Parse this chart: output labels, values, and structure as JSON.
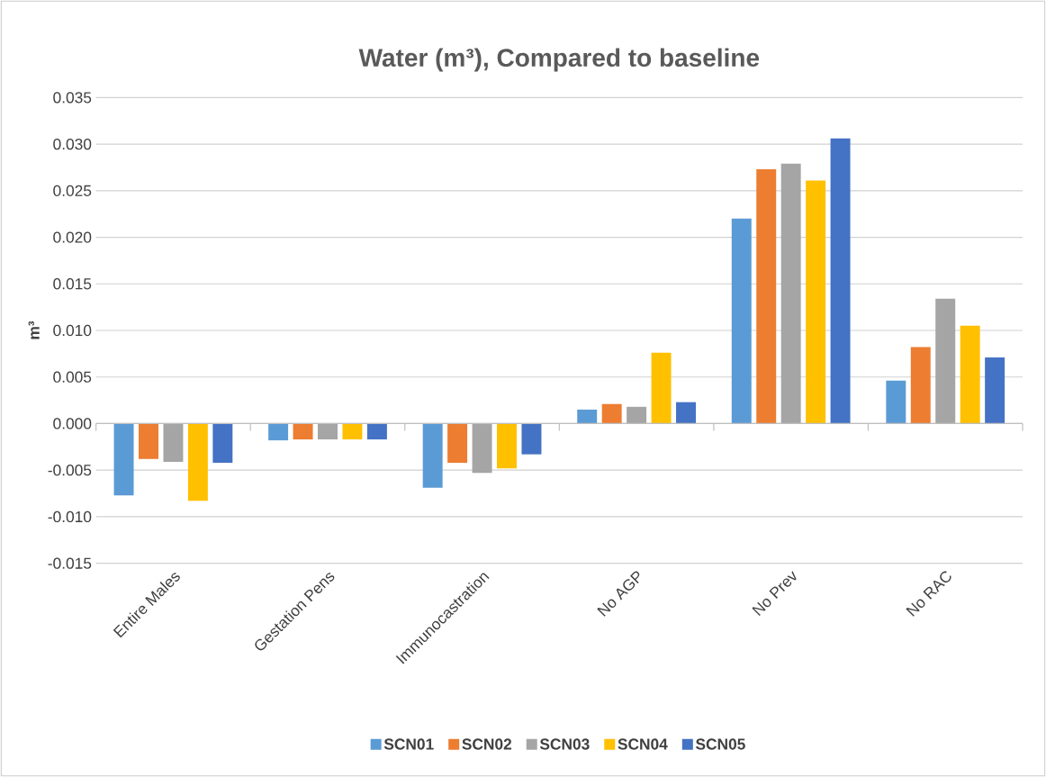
{
  "chart_data": {
    "type": "bar",
    "title": "Water (m³), Compared to baseline",
    "ylabel": "m³",
    "categories": [
      "Entire Males",
      "Gestation Pens",
      "Immunocastration",
      "No AGP",
      "No Prev",
      "No RAC"
    ],
    "series": [
      {
        "name": "SCN01",
        "color": "#5b9bd5",
        "values": [
          -0.0077,
          -0.0018,
          -0.0069,
          0.0015,
          0.022,
          0.0046
        ]
      },
      {
        "name": "SCN02",
        "color": "#ed7d31",
        "values": [
          -0.0038,
          -0.0017,
          -0.0042,
          0.0021,
          0.0273,
          0.0082
        ]
      },
      {
        "name": "SCN03",
        "color": "#a5a5a5",
        "values": [
          -0.0041,
          -0.0017,
          -0.0053,
          0.0018,
          0.0279,
          0.0134
        ]
      },
      {
        "name": "SCN04",
        "color": "#ffc000",
        "values": [
          -0.0083,
          -0.0017,
          -0.0048,
          0.0076,
          0.0261,
          0.0105
        ]
      },
      {
        "name": "SCN05",
        "color": "#4472c4",
        "values": [
          -0.0042,
          -0.0017,
          -0.0033,
          0.0023,
          0.0306,
          0.0071
        ]
      }
    ],
    "ylim": [
      -0.015,
      0.035
    ],
    "yticks": [
      {
        "value": -0.015,
        "label": "-0.015"
      },
      {
        "value": -0.01,
        "label": "-0.010"
      },
      {
        "value": -0.005,
        "label": "-0.005"
      },
      {
        "value": 0,
        "label": "0.000"
      },
      {
        "value": 0.005,
        "label": "0.005"
      },
      {
        "value": 0.01,
        "label": "0.010"
      },
      {
        "value": 0.015,
        "label": "0.015"
      },
      {
        "value": 0.02,
        "label": "0.020"
      },
      {
        "value": 0.025,
        "label": "0.025"
      },
      {
        "value": 0.03,
        "label": "0.030"
      },
      {
        "value": 0.035,
        "label": "0.035"
      }
    ],
    "grid": "y",
    "legend": "bottom"
  }
}
